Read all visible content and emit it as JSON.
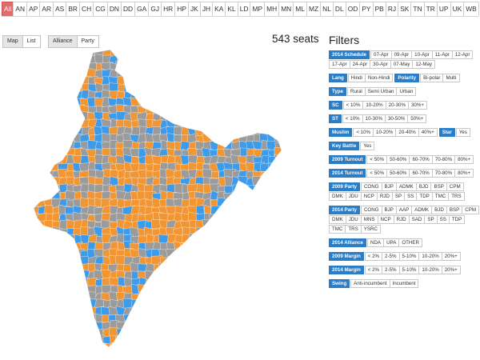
{
  "state_tabs": [
    "All",
    "AN",
    "AP",
    "AR",
    "AS",
    "BR",
    "CH",
    "CG",
    "DN",
    "DD",
    "GA",
    "GJ",
    "HR",
    "HP",
    "JK",
    "JH",
    "KA",
    "KL",
    "LD",
    "MP",
    "MH",
    "MN",
    "ML",
    "MZ",
    "NL",
    "DL",
    "OD",
    "PY",
    "PB",
    "RJ",
    "SK",
    "TN",
    "TR",
    "UP",
    "UK",
    "WB"
  ],
  "active_state": "All",
  "view_toggle": {
    "map": "Map",
    "list": "List"
  },
  "mode_toggle": {
    "alliance": "Alliance",
    "party": "Party"
  },
  "seats_label": "543 seats",
  "filters_title": "Filters",
  "filters": {
    "schedule": {
      "label": "2014 Schedule",
      "options": [
        "07-Apr",
        "09-Apr",
        "10-Apr",
        "11-Apr",
        "12-Apr",
        "17-Apr",
        "24-Apr",
        "30-Apr",
        "07-May",
        "12-May"
      ]
    },
    "lang": {
      "label": "Lang",
      "options": [
        "Hindi",
        "Non-Hindi"
      ]
    },
    "polarity": {
      "label": "Polarity",
      "options": [
        "Bi-polar",
        "Multi"
      ]
    },
    "type": {
      "label": "Type",
      "options": [
        "Rural",
        "Semi Urban",
        "Urban"
      ]
    },
    "sc": {
      "label": "SC",
      "options": [
        "< 10%",
        "10-20%",
        "20-30%",
        "30%+"
      ]
    },
    "st": {
      "label": "ST",
      "options": [
        "< 10%",
        "10-30%",
        "30-50%",
        "50%+"
      ]
    },
    "muslim": {
      "label": "Muslim",
      "options": [
        "< 10%",
        "10-20%",
        "20-40%",
        "40%+"
      ]
    },
    "star": {
      "label": "Star",
      "options": [
        "Yes"
      ]
    },
    "key_battle": {
      "label": "Key Battle",
      "options": [
        "Yes"
      ]
    },
    "turnout_2009": {
      "label": "2009 Turnout",
      "options": [
        "< 50%",
        "50-60%",
        "60-70%",
        "70-80%",
        "80%+"
      ]
    },
    "turnout_2014": {
      "label": "2014 Turnout",
      "options": [
        "< 50%",
        "50-60%",
        "60-70%",
        "70-80%",
        "80%+"
      ]
    },
    "party_2009": {
      "label": "2009 Party",
      "options": [
        "CONG",
        "BJP",
        "ADMK",
        "BJD",
        "BSP",
        "CPM",
        "DMK",
        "JDU",
        "NCP",
        "RJD",
        "SP",
        "SS",
        "TDP",
        "TMC",
        "TRS"
      ]
    },
    "party_2014": {
      "label": "2014 Party",
      "options": [
        "CONG",
        "BJP",
        "AAP",
        "ADMK",
        "BJD",
        "BSP",
        "CPM",
        "DMK",
        "JDU",
        "MNS",
        "NCP",
        "RJD",
        "SAD",
        "SP",
        "SS",
        "TDP",
        "TMC",
        "TRS",
        "YSRC"
      ]
    },
    "alliance_2014": {
      "label": "2014 Alliance",
      "options": [
        "NDA",
        "UPA",
        "OTHER"
      ]
    },
    "margin_2009": {
      "label": "2009 Margin",
      "options": [
        "< 2%",
        "2-5%",
        "5-10%",
        "10-20%",
        "20%+"
      ]
    },
    "margin_2014": {
      "label": "2014 Margin",
      "options": [
        "< 2%",
        "2-5%",
        "5-10%",
        "10-20%",
        "20%+"
      ]
    },
    "swing": {
      "label": "Swing",
      "options": [
        "Anti-incumbent",
        "Incumbent"
      ]
    }
  },
  "colors": {
    "accent": "#2a7dc7",
    "active_tab": "#e26a6a",
    "map_orange": "#f29633",
    "map_blue": "#3d9be9",
    "map_gray": "#9b9b9b"
  }
}
